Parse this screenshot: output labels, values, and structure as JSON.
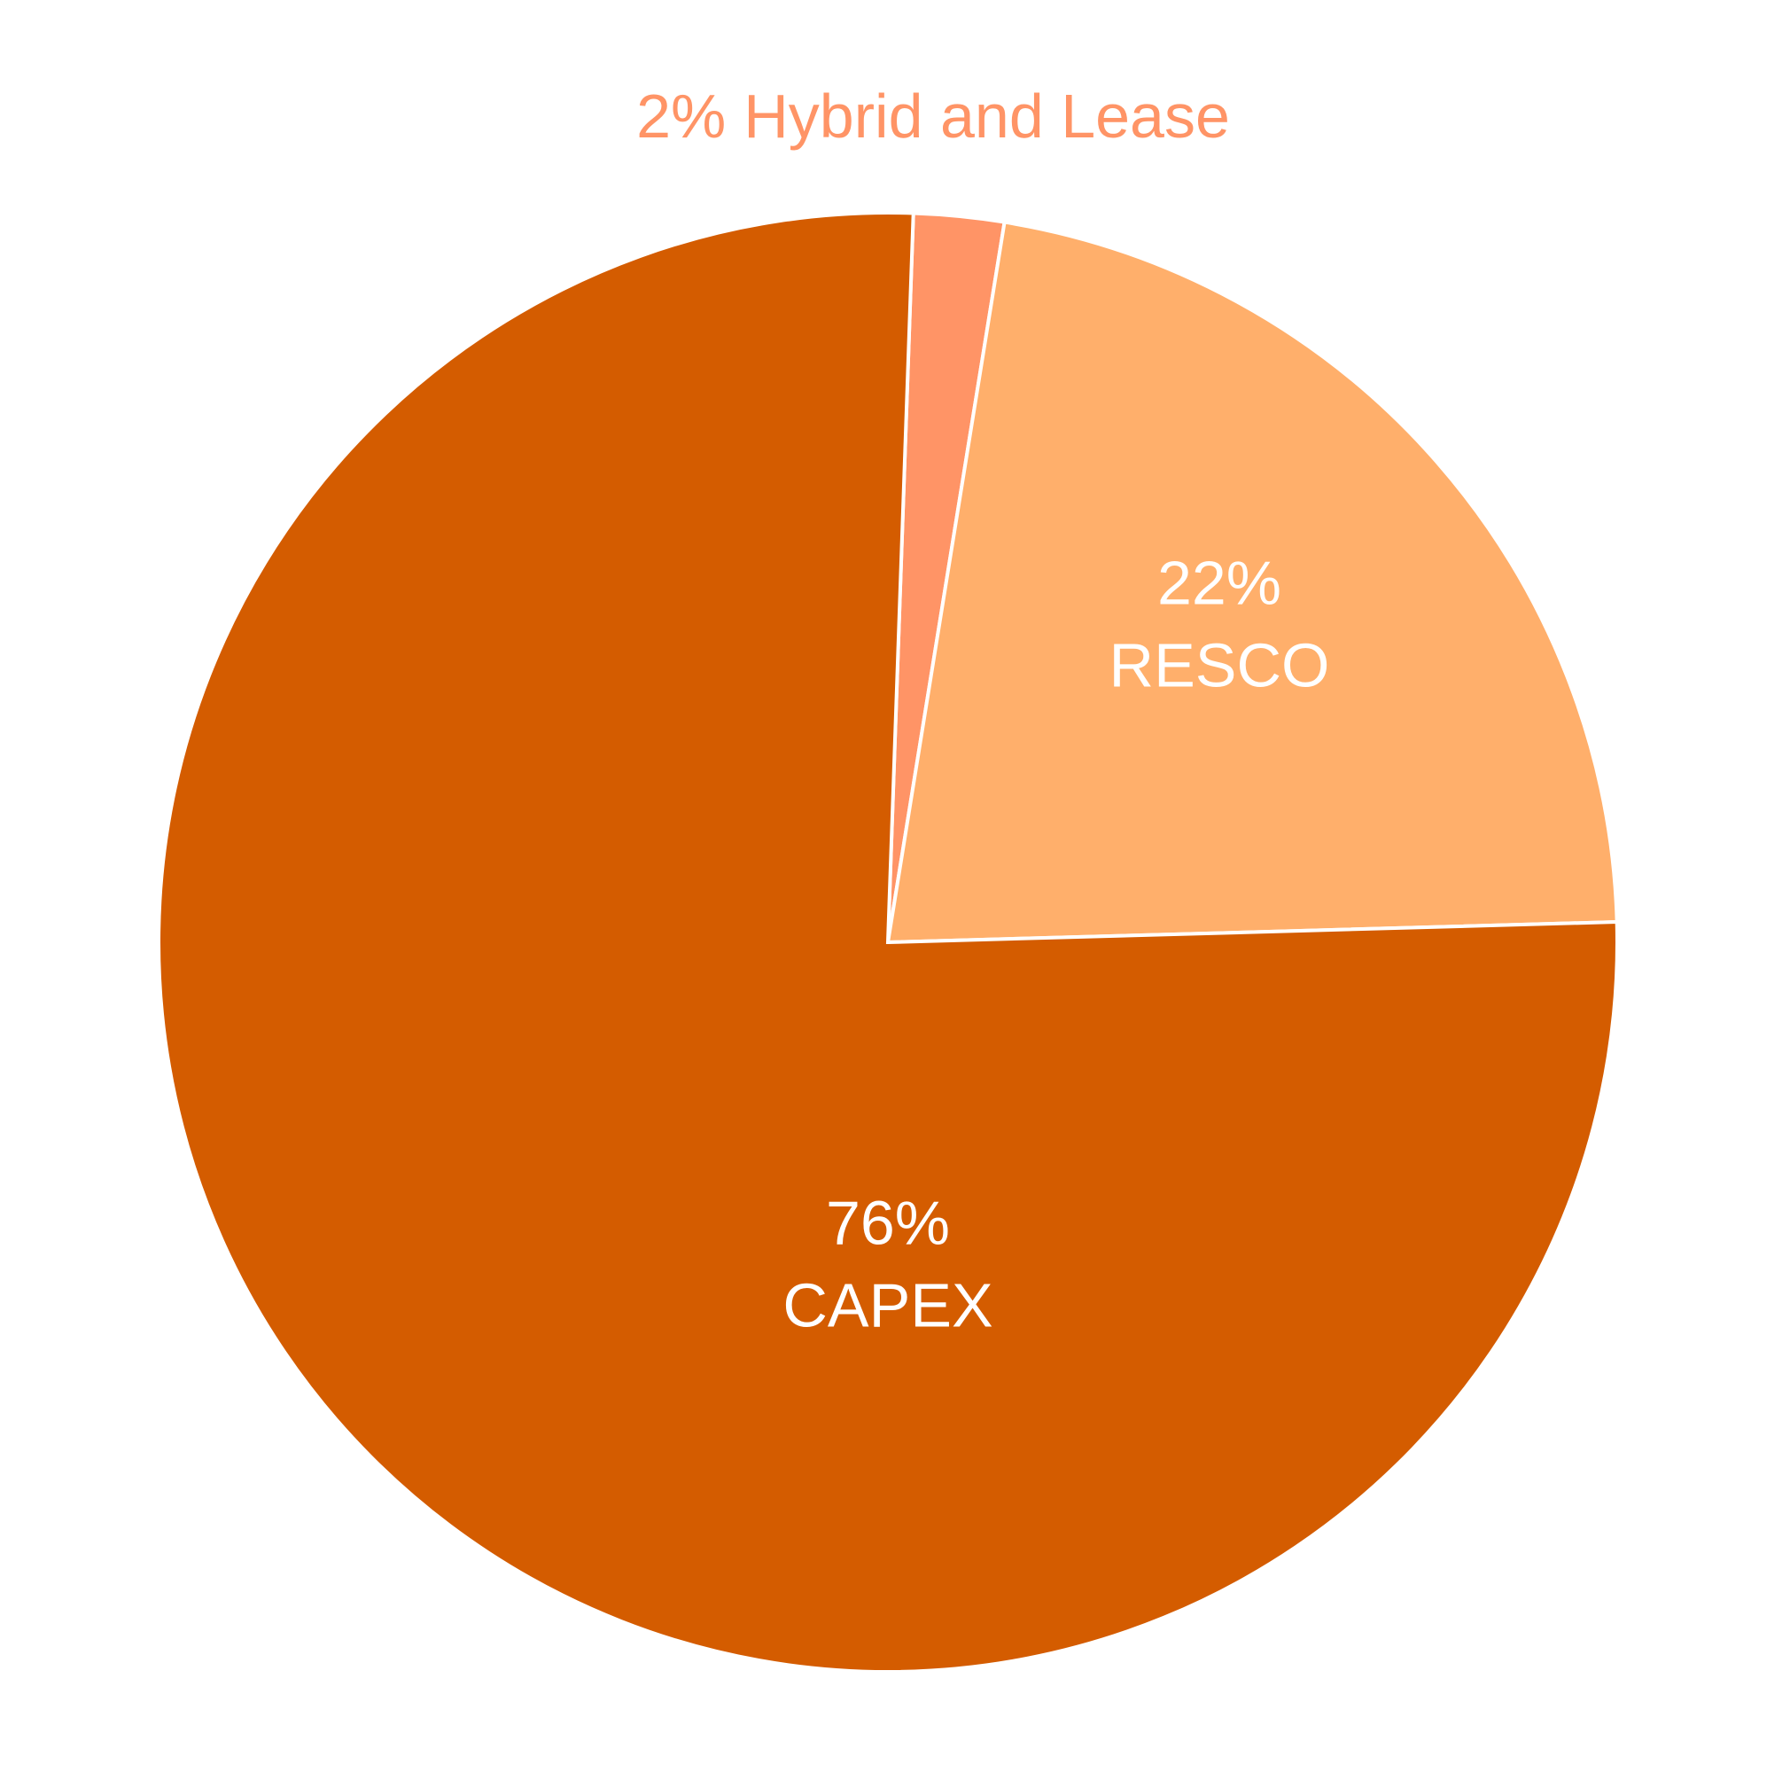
{
  "chart_data": {
    "type": "pie",
    "categories": [
      "Hybrid and Lease",
      "RESCO",
      "CAPEX"
    ],
    "values": [
      2,
      22,
      76
    ],
    "value_labels": [
      "2%",
      "22%",
      "76%"
    ],
    "colors": [
      "#ff9466",
      "#ffaf6b",
      "#d45c00"
    ]
  }
}
